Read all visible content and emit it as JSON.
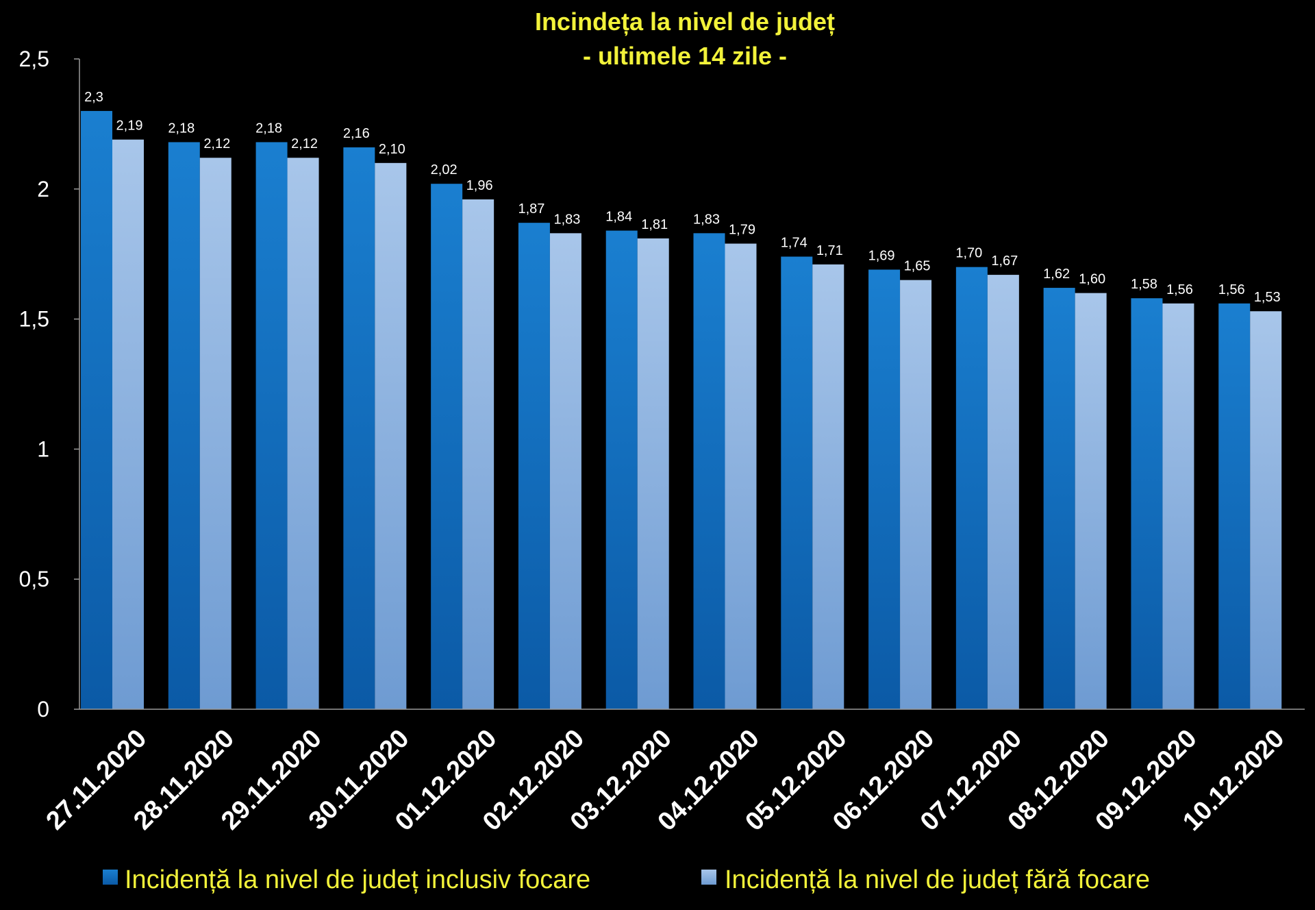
{
  "chart_data": {
    "type": "bar",
    "title": "Incindeța la nivel de județ",
    "subtitle": "- ultimele 14 zile -",
    "categories": [
      "27.11.2020",
      "28.11.2020",
      "29.11.2020",
      "30.11.2020",
      "01.12.2020",
      "02.12.2020",
      "03.12.2020",
      "04.12.2020",
      "05.12.2020",
      "06.12.2020",
      "07.12.2020",
      "08.12.2020",
      "09.12.2020",
      "10.12.2020"
    ],
    "series": [
      {
        "name": "Incidență la nivel de județ inclusiv focare",
        "values": [
          2.3,
          2.18,
          2.18,
          2.16,
          2.02,
          1.87,
          1.84,
          1.83,
          1.74,
          1.69,
          1.7,
          1.62,
          1.58,
          1.56
        ],
        "labels": [
          "2,3",
          "2,18",
          "2,18",
          "2,16",
          "2,02",
          "1,87",
          "1,84",
          "1,83",
          "1,74",
          "1,69",
          "1,70",
          "1,62",
          "1,58",
          "1,56"
        ],
        "color": "#1a74c2"
      },
      {
        "name": "Incidență la nivel de județ fără focare",
        "values": [
          2.19,
          2.12,
          2.12,
          2.1,
          1.96,
          1.83,
          1.81,
          1.79,
          1.71,
          1.65,
          1.67,
          1.6,
          1.56,
          1.53
        ],
        "labels": [
          "2,19",
          "2,12",
          "2,12",
          "2,10",
          "1,96",
          "1,83",
          "1,81",
          "1,79",
          "1,71",
          "1,65",
          "1,67",
          "1,60",
          "1,56",
          "1,53"
        ],
        "color": "#8fb3e0"
      }
    ],
    "yticks": [
      "0",
      "0,5",
      "1",
      "1,5",
      "2",
      "2,5"
    ],
    "ytick_values": [
      0,
      0.5,
      1,
      1.5,
      2,
      2.5
    ],
    "ylim": [
      0,
      2.5
    ],
    "xlabel": "",
    "ylabel": "",
    "grid": false,
    "legend_position": "bottom",
    "background_color": "#000000",
    "title_color": "#f2f23a"
  }
}
